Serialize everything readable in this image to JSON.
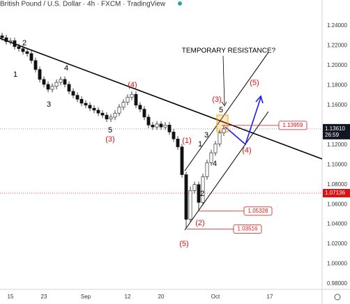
{
  "chart_data": {
    "type": "candlestick",
    "title": "British Pound / U.S. Dollar · 4h · FXCM · TradingView",
    "categories": [
      null,
      null,
      "15",
      null,
      null,
      null,
      null,
      null,
      null,
      null,
      "23",
      null,
      null,
      null,
      null,
      null,
      null,
      null,
      null,
      null,
      "Sep",
      null,
      null,
      null,
      null,
      null,
      null,
      null,
      null,
      null,
      "12",
      null,
      null,
      null,
      null,
      null,
      null,
      null,
      "20",
      null,
      null,
      null,
      null,
      null,
      null,
      null,
      null,
      null,
      null,
      null,
      null,
      "Oct",
      null,
      null,
      null,
      null,
      null,
      null,
      null,
      null,
      null,
      null,
      null,
      null,
      "17",
      null,
      null,
      null,
      null,
      null,
      null,
      null,
      null,
      null,
      null,
      null,
      null
    ],
    "open": [
      1.23,
      1.228,
      1.224,
      1.225,
      1.219,
      1.217,
      1.214,
      1.212,
      1.205,
      1.196,
      1.186,
      1.181,
      1.176,
      1.179,
      1.183,
      1.186,
      1.181,
      1.174,
      1.17,
      1.166,
      1.162,
      1.16,
      1.157,
      1.155,
      1.152,
      1.15,
      1.146,
      1.148,
      1.152,
      1.158,
      1.163,
      1.168,
      1.171,
      1.16,
      1.156,
      1.148,
      1.14,
      1.138,
      1.141,
      1.138,
      1.14,
      1.133,
      1.126,
      1.118,
      1.09,
      1.045,
      1.074,
      1.08,
      1.062,
      1.088,
      1.102,
      1.112,
      1.121,
      1.132,
      null,
      null,
      null,
      null,
      null,
      null,
      null,
      null,
      null,
      null,
      null,
      null,
      null,
      null,
      null,
      null,
      null,
      null,
      null,
      null,
      null,
      null,
      null
    ],
    "high": [
      1.233,
      1.231,
      1.228,
      1.228,
      1.222,
      1.22,
      1.217,
      1.215,
      1.208,
      1.199,
      1.189,
      1.184,
      1.182,
      1.186,
      1.189,
      1.189,
      1.184,
      1.177,
      1.173,
      1.169,
      1.165,
      1.163,
      1.16,
      1.158,
      1.155,
      1.153,
      1.151,
      1.155,
      1.161,
      1.166,
      1.171,
      1.174,
      1.174,
      1.163,
      1.159,
      1.151,
      1.143,
      1.144,
      1.144,
      1.143,
      1.143,
      1.136,
      1.129,
      1.121,
      1.093,
      1.078,
      1.083,
      1.083,
      1.091,
      1.105,
      1.115,
      1.124,
      1.135,
      1.1396,
      null,
      null,
      null,
      null,
      null,
      null,
      null,
      null,
      null,
      null,
      null,
      null,
      null,
      null,
      null,
      null,
      null,
      null,
      null,
      null,
      null,
      null,
      null
    ],
    "low": [
      1.225,
      1.221,
      1.221,
      1.216,
      1.214,
      1.211,
      1.209,
      1.202,
      1.193,
      1.183,
      1.178,
      1.173,
      1.173,
      1.176,
      1.18,
      1.178,
      1.171,
      1.167,
      1.163,
      1.159,
      1.157,
      1.154,
      1.152,
      1.149,
      1.147,
      1.143,
      1.143,
      1.145,
      1.149,
      1.155,
      1.16,
      1.165,
      1.157,
      1.153,
      1.145,
      1.137,
      1.135,
      1.135,
      1.135,
      1.135,
      1.13,
      1.123,
      1.115,
      1.087,
      1.0352,
      1.042,
      1.071,
      1.0533,
      1.059,
      1.085,
      1.099,
      1.109,
      1.118,
      1.129,
      null,
      null,
      null,
      null,
      null,
      null,
      null,
      null,
      null,
      null,
      null,
      null,
      null,
      null,
      null,
      null,
      null,
      null,
      null,
      null,
      null,
      null,
      null
    ],
    "close": [
      1.228,
      1.224,
      1.225,
      1.219,
      1.217,
      1.214,
      1.212,
      1.205,
      1.196,
      1.186,
      1.181,
      1.176,
      1.179,
      1.183,
      1.186,
      1.181,
      1.174,
      1.17,
      1.166,
      1.162,
      1.16,
      1.157,
      1.155,
      1.152,
      1.15,
      1.146,
      1.148,
      1.152,
      1.158,
      1.163,
      1.168,
      1.171,
      1.16,
      1.156,
      1.148,
      1.14,
      1.138,
      1.141,
      1.138,
      1.14,
      1.133,
      1.126,
      1.118,
      1.09,
      1.045,
      1.074,
      1.08,
      1.062,
      1.088,
      1.102,
      1.112,
      1.121,
      1.132,
      1.1361,
      null,
      null,
      null,
      null,
      null,
      null,
      null,
      null,
      null,
      null,
      null,
      null,
      null,
      null,
      null,
      null,
      null,
      null,
      null,
      null,
      null,
      null,
      null
    ],
    "up_color": "#ffffff",
    "down_color": "#111111",
    "ylim": [
      0.9744,
      1.266
    ],
    "yticks": [
      {
        "value": 1.24,
        "label": "1.24000"
      },
      {
        "value": 1.22,
        "label": "1.22000"
      },
      {
        "value": 1.2,
        "label": "1.20000"
      },
      {
        "value": 1.18,
        "label": "1.18000"
      },
      {
        "value": 1.16,
        "label": "1.16000"
      },
      {
        "value": 1.12,
        "label": "1.12000"
      },
      {
        "value": 1.1,
        "label": "1.10000"
      },
      {
        "value": 1.08,
        "label": "1.08000"
      },
      {
        "value": 1.06,
        "label": "1.06000"
      },
      {
        "value": 1.04,
        "label": "1.04000"
      },
      {
        "value": 1.02,
        "label": "1.02000"
      },
      {
        "value": 1.0,
        "label": "1.00000"
      },
      {
        "value": 0.98,
        "label": "0.98000"
      }
    ],
    "price_levels": [
      {
        "value": 1.13959,
        "label": "1.13959"
      },
      {
        "value": 1.05328,
        "label": "1.05328"
      },
      {
        "value": 1.03516,
        "label": "1.03516"
      }
    ],
    "axis_level": {
      "value": 1.07136,
      "label": "1.07136"
    },
    "current_price": {
      "value": 1.1361,
      "label": "1.13610",
      "timer": "26:59"
    },
    "annotations": [
      {
        "text": "2",
        "color": "#000000"
      },
      {
        "text": "1",
        "color": "#000000"
      },
      {
        "text": "4",
        "color": "#000000"
      },
      {
        "text": "3",
        "color": "#000000"
      },
      {
        "text": "(4)",
        "color": "#e01010"
      },
      {
        "text": "5",
        "color": "#000000"
      },
      {
        "text": "(3)",
        "color": "#e01010"
      },
      {
        "text": "(1)",
        "color": "#e01010"
      },
      {
        "text": "1",
        "color": "#000000"
      },
      {
        "text": "3",
        "color": "#000000"
      },
      {
        "text": "4",
        "color": "#000000"
      },
      {
        "text": "2",
        "color": "#000000"
      },
      {
        "text": "(2)",
        "color": "#e01010"
      },
      {
        "text": "(5)",
        "color": "#e01010"
      },
      {
        "text": "5",
        "color": "#000000"
      },
      {
        "text": "(3)",
        "color": "#e01010"
      },
      {
        "text": "(5)",
        "color": "#e01010"
      },
      {
        "text": "(4)",
        "color": "#e01010"
      },
      {
        "text": "TEMPORARY RESISTANCE?",
        "color": "#000000"
      }
    ]
  }
}
